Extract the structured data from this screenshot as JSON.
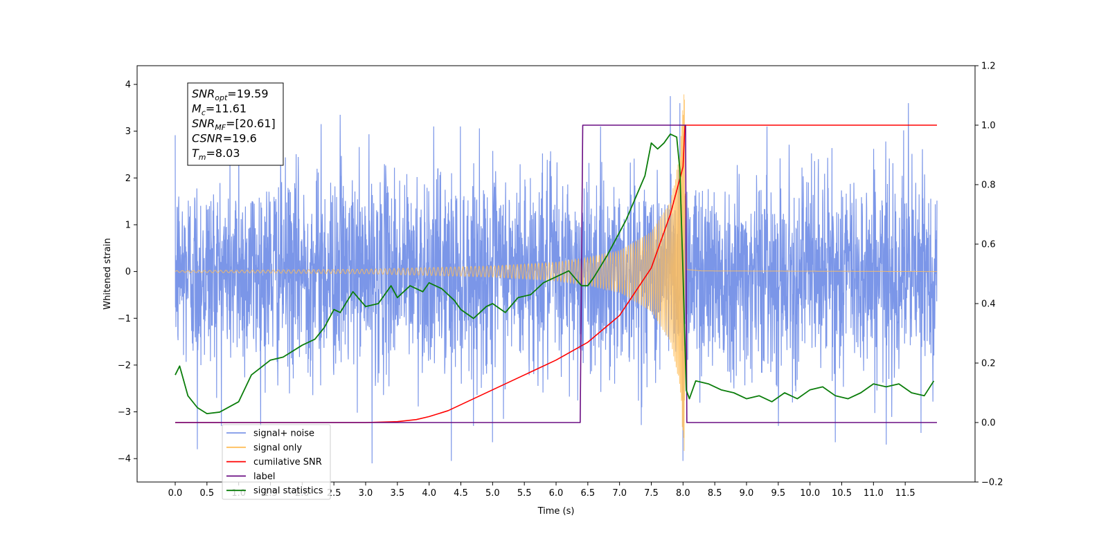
{
  "chart_data": {
    "type": "line",
    "xlabel": "Time (s)",
    "ylabel": "Whitened strain",
    "y2label": "",
    "xlim": [
      -0.6,
      12.6
    ],
    "ylim": [
      -4.5,
      4.4
    ],
    "y2lim": [
      -0.2,
      1.2
    ],
    "grid": false,
    "legend_position": "lower-left",
    "x_ticks": [
      "0.0",
      "0.5",
      "1.0",
      "1.5",
      "2.0",
      "2.5",
      "3.0",
      "3.5",
      "4.0",
      "4.5",
      "5.0",
      "5.5",
      "6.0",
      "6.5",
      "7.0",
      "7.5",
      "8.0",
      "8.5",
      "9.0",
      "9.5",
      "10.0",
      "10.5",
      "11.0",
      "11.5"
    ],
    "y_ticks": [
      "4",
      "3",
      "2",
      "1",
      "0",
      "−1",
      "−2",
      "−3",
      "−4"
    ],
    "y2_ticks": [
      "1.2",
      "1.0",
      "0.8",
      "0.6",
      "0.4",
      "0.2",
      "0.0",
      "−0.2"
    ],
    "info_box": [
      {
        "base": "SNR",
        "sub": "opt",
        "rest": "=19.59"
      },
      {
        "base": "M",
        "sub": "c",
        "rest": "=11.61"
      },
      {
        "base": "SNR",
        "sub": "MF",
        "rest": "=[20.61]"
      },
      {
        "base": "CSNR",
        "sub": "",
        "rest": "=19.6"
      },
      {
        "base": "T",
        "sub": "m",
        "rest": "=8.03"
      }
    ],
    "series": [
      {
        "name": "signal+ noise",
        "axis": "left",
        "color": "#7b96e8",
        "kind": "noise",
        "x_range": [
          0.0,
          12.0
        ],
        "approx_envelope": [
          -3.0,
          3.0
        ],
        "peak_values": [
          {
            "x": 1.0,
            "y": 2.8
          },
          {
            "x": 2.3,
            "y": 3.15
          },
          {
            "x": 2.6,
            "y": 3.35
          },
          {
            "x": 3.1,
            "y": -4.1
          },
          {
            "x": 4.35,
            "y": -4.05
          },
          {
            "x": 5.0,
            "y": -3.65
          },
          {
            "x": 7.8,
            "y": 3.75
          },
          {
            "x": 7.95,
            "y": 3.6
          },
          {
            "x": 8.0,
            "y": -4.05
          },
          {
            "x": 10.4,
            "y": -3.65
          },
          {
            "x": 11.2,
            "y": -3.7
          },
          {
            "x": 11.55,
            "y": 3.6
          },
          {
            "x": 11.75,
            "y": -3.45
          },
          {
            "x": 0.35,
            "y": -3.8
          }
        ]
      },
      {
        "name": "signal only",
        "axis": "left",
        "color": "#ffbe5a",
        "kind": "chirp",
        "x_range": [
          0.0,
          12.0
        ],
        "merger_time": 8.03,
        "peak": 4.0,
        "envelope_points": [
          [
            0.0,
            0.02
          ],
          [
            3.0,
            0.05
          ],
          [
            5.0,
            0.12
          ],
          [
            6.0,
            0.2
          ],
          [
            6.5,
            0.3
          ],
          [
            7.0,
            0.45
          ],
          [
            7.5,
            0.85
          ],
          [
            7.8,
            1.5
          ],
          [
            7.95,
            2.5
          ],
          [
            8.0,
            3.6
          ],
          [
            8.03,
            4.0
          ],
          [
            8.06,
            0.1
          ],
          [
            8.3,
            0.03
          ],
          [
            12.0,
            0.0
          ]
        ]
      },
      {
        "name": "cumilative SNR",
        "axis": "right",
        "color": "#ff0000",
        "x": [
          0.0,
          3.0,
          3.5,
          3.8,
          4.0,
          4.3,
          4.5,
          5.0,
          5.5,
          6.0,
          6.5,
          7.0,
          7.5,
          7.8,
          8.0,
          8.03,
          8.5,
          12.0
        ],
        "y": [
          0.0,
          0.0,
          0.003,
          0.01,
          0.02,
          0.04,
          0.06,
          0.11,
          0.16,
          0.21,
          0.27,
          0.36,
          0.52,
          0.7,
          0.86,
          1.0,
          1.0,
          1.0
        ]
      },
      {
        "name": "label",
        "axis": "right",
        "color": "#6a0d83",
        "x": [
          0.0,
          6.38,
          6.42,
          7.3,
          8.04,
          8.06,
          12.0
        ],
        "y": [
          0.0,
          0.0,
          1.0,
          1.0,
          1.0,
          0.0,
          0.0
        ]
      },
      {
        "name": "signal statistics",
        "axis": "right",
        "color": "#0a7d0a",
        "x": [
          0.0,
          0.07,
          0.2,
          0.35,
          0.5,
          0.7,
          1.0,
          1.2,
          1.5,
          1.7,
          2.0,
          2.2,
          2.35,
          2.5,
          2.6,
          2.8,
          3.0,
          3.2,
          3.4,
          3.5,
          3.7,
          3.9,
          4.0,
          4.2,
          4.4,
          4.5,
          4.7,
          4.9,
          5.0,
          5.2,
          5.4,
          5.6,
          5.8,
          6.0,
          6.2,
          6.4,
          6.5,
          6.6,
          6.8,
          7.0,
          7.1,
          7.3,
          7.4,
          7.5,
          7.6,
          7.7,
          7.8,
          7.9,
          7.95,
          8.0,
          8.05,
          8.1,
          8.2,
          8.4,
          8.6,
          8.8,
          9.0,
          9.2,
          9.4,
          9.6,
          9.8,
          10.0,
          10.2,
          10.4,
          10.6,
          10.8,
          11.0,
          11.2,
          11.4,
          11.6,
          11.8,
          11.95
        ],
        "y": [
          0.16,
          0.19,
          0.09,
          0.05,
          0.03,
          0.035,
          0.07,
          0.16,
          0.21,
          0.22,
          0.26,
          0.28,
          0.32,
          0.38,
          0.37,
          0.44,
          0.39,
          0.4,
          0.46,
          0.42,
          0.46,
          0.44,
          0.47,
          0.45,
          0.41,
          0.38,
          0.35,
          0.39,
          0.4,
          0.37,
          0.42,
          0.43,
          0.47,
          0.49,
          0.51,
          0.46,
          0.46,
          0.49,
          0.56,
          0.64,
          0.68,
          0.78,
          0.83,
          0.94,
          0.92,
          0.94,
          0.97,
          0.96,
          0.85,
          0.5,
          0.11,
          0.08,
          0.14,
          0.13,
          0.11,
          0.1,
          0.08,
          0.09,
          0.07,
          0.1,
          0.08,
          0.11,
          0.12,
          0.09,
          0.08,
          0.1,
          0.13,
          0.12,
          0.13,
          0.1,
          0.09,
          0.14
        ]
      }
    ]
  }
}
